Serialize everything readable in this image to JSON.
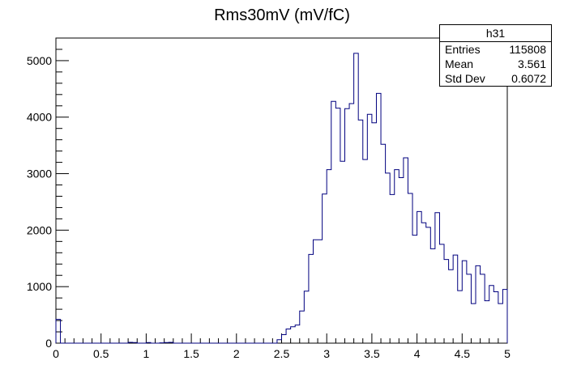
{
  "chart_data": {
    "type": "histogram",
    "title": "Rms30mV (mV/fC)",
    "xlabel": "",
    "ylabel": "",
    "xlim": [
      0,
      5
    ],
    "ylim": [
      0,
      5400
    ],
    "bin_width": 0.05,
    "x_ticks": [
      0,
      0.5,
      1,
      1.5,
      2,
      2.5,
      3,
      3.5,
      4,
      4.5,
      5
    ],
    "x_tick_labels": [
      "0",
      "0.5",
      "1",
      "1.5",
      "2",
      "2.5",
      "3",
      "3.5",
      "4",
      "4.5",
      "5"
    ],
    "y_ticks": [
      0,
      1000,
      2000,
      3000,
      4000,
      5000
    ],
    "y_tick_labels": [
      "0",
      "1000",
      "2000",
      "3000",
      "4000",
      "5000"
    ],
    "series": [
      {
        "bins": [
          0,
          0.05,
          0.1,
          0.15,
          0.2,
          0.25,
          0.3,
          0.35,
          0.4,
          0.45,
          0.5,
          0.55,
          0.6,
          0.65,
          0.7,
          0.75,
          0.8,
          0.85,
          0.9,
          0.95,
          1,
          1.05,
          1.1,
          1.15,
          1.2,
          1.25,
          1.3,
          1.35,
          1.4,
          1.45,
          1.5,
          1.55,
          1.6,
          1.65,
          1.7,
          1.75,
          1.8,
          1.85,
          1.9,
          1.95,
          2,
          2.05,
          2.1,
          2.15,
          2.2,
          2.25,
          2.3,
          2.35,
          2.4,
          2.45,
          2.5,
          2.55,
          2.6,
          2.65,
          2.7,
          2.75,
          2.8,
          2.85,
          2.9,
          2.95,
          3,
          3.05,
          3.1,
          3.15,
          3.2,
          3.25,
          3.3,
          3.35,
          3.4,
          3.45,
          3.5,
          3.55,
          3.6,
          3.65,
          3.7,
          3.75,
          3.8,
          3.85,
          3.9,
          3.95,
          4,
          4.05,
          4.1,
          4.15,
          4.2,
          4.25,
          4.3,
          4.35,
          4.4,
          4.45,
          4.5,
          4.55,
          4.6,
          4.65,
          4.7,
          4.75,
          4.8,
          4.85,
          4.9,
          4.95
        ],
        "values": [
          420,
          0,
          0,
          0,
          0,
          0,
          0,
          0,
          0,
          0,
          0,
          0,
          0,
          0,
          0,
          0,
          15,
          10,
          0,
          0,
          10,
          0,
          0,
          5,
          10,
          15,
          0,
          0,
          0,
          0,
          0,
          0,
          0,
          0,
          0,
          0,
          0,
          0,
          0,
          0,
          0,
          0,
          0,
          0,
          0,
          0,
          0,
          0,
          0,
          60,
          150,
          250,
          290,
          320,
          570,
          920,
          1570,
          1830,
          1830,
          2640,
          3070,
          4280,
          4160,
          3220,
          4150,
          4240,
          5130,
          3950,
          3250,
          4050,
          3900,
          4420,
          3520,
          3010,
          2630,
          3070,
          2930,
          3280,
          2650,
          1910,
          2330,
          2130,
          2050,
          1670,
          2310,
          1750,
          1480,
          1300,
          1560,
          930,
          1460,
          1220,
          700,
          1370,
          1220,
          750,
          1020,
          910,
          700,
          950
        ]
      }
    ]
  },
  "stats_box": {
    "name": "h31",
    "rows": [
      {
        "label": "Entries",
        "value": "115808"
      },
      {
        "label": "Mean",
        "value": "3.561"
      },
      {
        "label": "Std Dev",
        "value": "0.6072"
      }
    ]
  }
}
